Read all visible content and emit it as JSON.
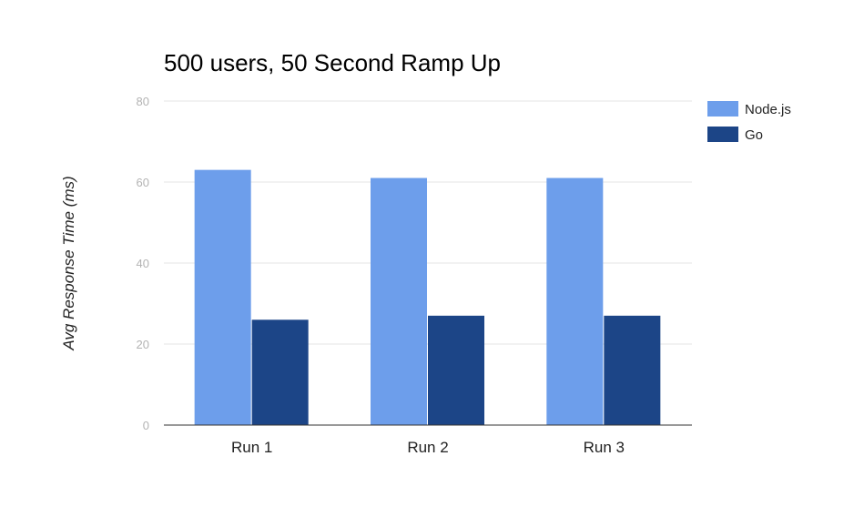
{
  "chart_data": {
    "type": "bar",
    "title": "500 users, 50 Second Ramp Up",
    "xlabel": "",
    "ylabel": "Avg Response Time (ms)",
    "categories": [
      "Run 1",
      "Run 2",
      "Run 3"
    ],
    "series": [
      {
        "name": "Node.js",
        "values": [
          63,
          61,
          61
        ],
        "color": "#6d9eeb"
      },
      {
        "name": "Go",
        "values": [
          26,
          27,
          27
        ],
        "color": "#1c4587"
      }
    ],
    "ylim": [
      0,
      80
    ],
    "yticks": [
      "0",
      "20",
      "40",
      "60",
      "80"
    ],
    "grid": true,
    "legend_position": "right",
    "colors": {
      "gridline": "#e6e6e6",
      "baseline": "#333333",
      "tick_label": "#b3b3b3",
      "title": "#000000",
      "axis_label": "#222222",
      "category_label": "#222222",
      "legend_text": "#222222"
    }
  }
}
